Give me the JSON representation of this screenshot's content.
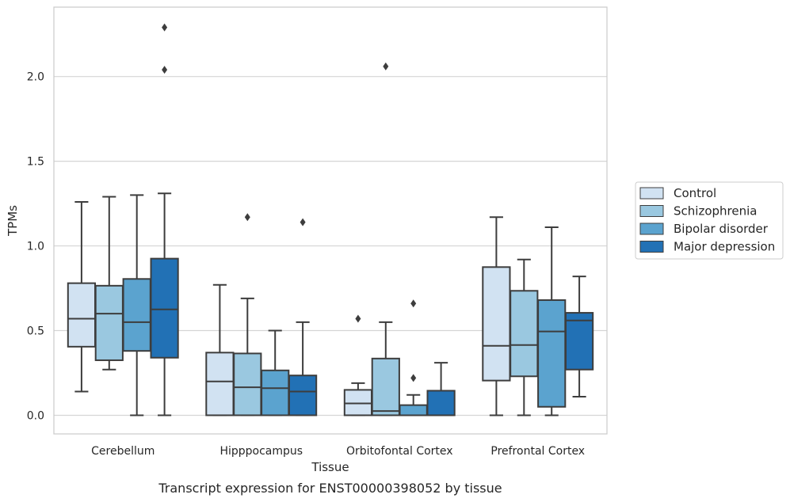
{
  "chart_data": {
    "type": "boxplot",
    "caption": "Transcript expression for ENST00000398052 by tissue",
    "xlabel": "Tissue",
    "ylabel": "TPMs",
    "ylim": [
      -0.11,
      2.41
    ],
    "yticks": [
      0.0,
      0.5,
      1.0,
      1.5,
      2.0
    ],
    "ytick_labels": [
      "0.0",
      "0.5",
      "1.0",
      "1.5",
      "2.0"
    ],
    "grid": "horizontal",
    "legend_position": "right",
    "categories": [
      "Cerebellum",
      "Hipppocampus",
      "Orbitofontal Cortex",
      "Prefrontal Cortex"
    ],
    "series": [
      {
        "name": "Control",
        "color": "#d1e2f2",
        "boxes": [
          {
            "whisker_low": 0.14,
            "q1": 0.405,
            "median": 0.57,
            "q3": 0.78,
            "whisker_high": 1.26,
            "outliers": []
          },
          {
            "whisker_low": 0.0,
            "q1": 0.0,
            "median": 0.2,
            "q3": 0.37,
            "whisker_high": 0.77,
            "outliers": []
          },
          {
            "whisker_low": 0.0,
            "q1": 0.0,
            "median": 0.07,
            "q3": 0.15,
            "whisker_high": 0.19,
            "outliers": [
              0.57
            ]
          },
          {
            "whisker_low": 0.0,
            "q1": 0.205,
            "median": 0.41,
            "q3": 0.875,
            "whisker_high": 1.17,
            "outliers": []
          }
        ]
      },
      {
        "name": "Schizophrenia",
        "color": "#9ac8e0",
        "boxes": [
          {
            "whisker_low": 0.27,
            "q1": 0.325,
            "median": 0.6,
            "q3": 0.765,
            "whisker_high": 1.29,
            "outliers": []
          },
          {
            "whisker_low": 0.0,
            "q1": 0.0,
            "median": 0.165,
            "q3": 0.365,
            "whisker_high": 0.69,
            "outliers": [
              1.17
            ]
          },
          {
            "whisker_low": 0.0,
            "q1": 0.0,
            "median": 0.025,
            "q3": 0.335,
            "whisker_high": 0.55,
            "outliers": [
              2.06
            ]
          },
          {
            "whisker_low": 0.0,
            "q1": 0.23,
            "median": 0.415,
            "q3": 0.735,
            "whisker_high": 0.92,
            "outliers": []
          }
        ]
      },
      {
        "name": "Bipolar disorder",
        "color": "#5ba3cf",
        "boxes": [
          {
            "whisker_low": 0.0,
            "q1": 0.38,
            "median": 0.55,
            "q3": 0.805,
            "whisker_high": 1.3,
            "outliers": []
          },
          {
            "whisker_low": 0.0,
            "q1": 0.0,
            "median": 0.16,
            "q3": 0.265,
            "whisker_high": 0.5,
            "outliers": []
          },
          {
            "whisker_low": 0.0,
            "q1": 0.0,
            "median": 0.0,
            "q3": 0.06,
            "whisker_high": 0.12,
            "outliers": [
              0.22,
              0.66
            ]
          },
          {
            "whisker_low": 0.0,
            "q1": 0.05,
            "median": 0.495,
            "q3": 0.68,
            "whisker_high": 1.11,
            "outliers": []
          }
        ]
      },
      {
        "name": "Major depression",
        "color": "#2271b5",
        "boxes": [
          {
            "whisker_low": 0.0,
            "q1": 0.34,
            "median": 0.625,
            "q3": 0.925,
            "whisker_high": 1.31,
            "outliers": [
              2.04,
              2.29
            ]
          },
          {
            "whisker_low": 0.0,
            "q1": 0.0,
            "median": 0.14,
            "q3": 0.235,
            "whisker_high": 0.55,
            "outliers": [
              1.14
            ]
          },
          {
            "whisker_low": 0.0,
            "q1": 0.0,
            "median": 0.0,
            "q3": 0.145,
            "whisker_high": 0.31,
            "outliers": []
          },
          {
            "whisker_low": 0.11,
            "q1": 0.27,
            "median": 0.56,
            "q3": 0.605,
            "whisker_high": 0.82,
            "outliers": []
          }
        ]
      }
    ]
  }
}
